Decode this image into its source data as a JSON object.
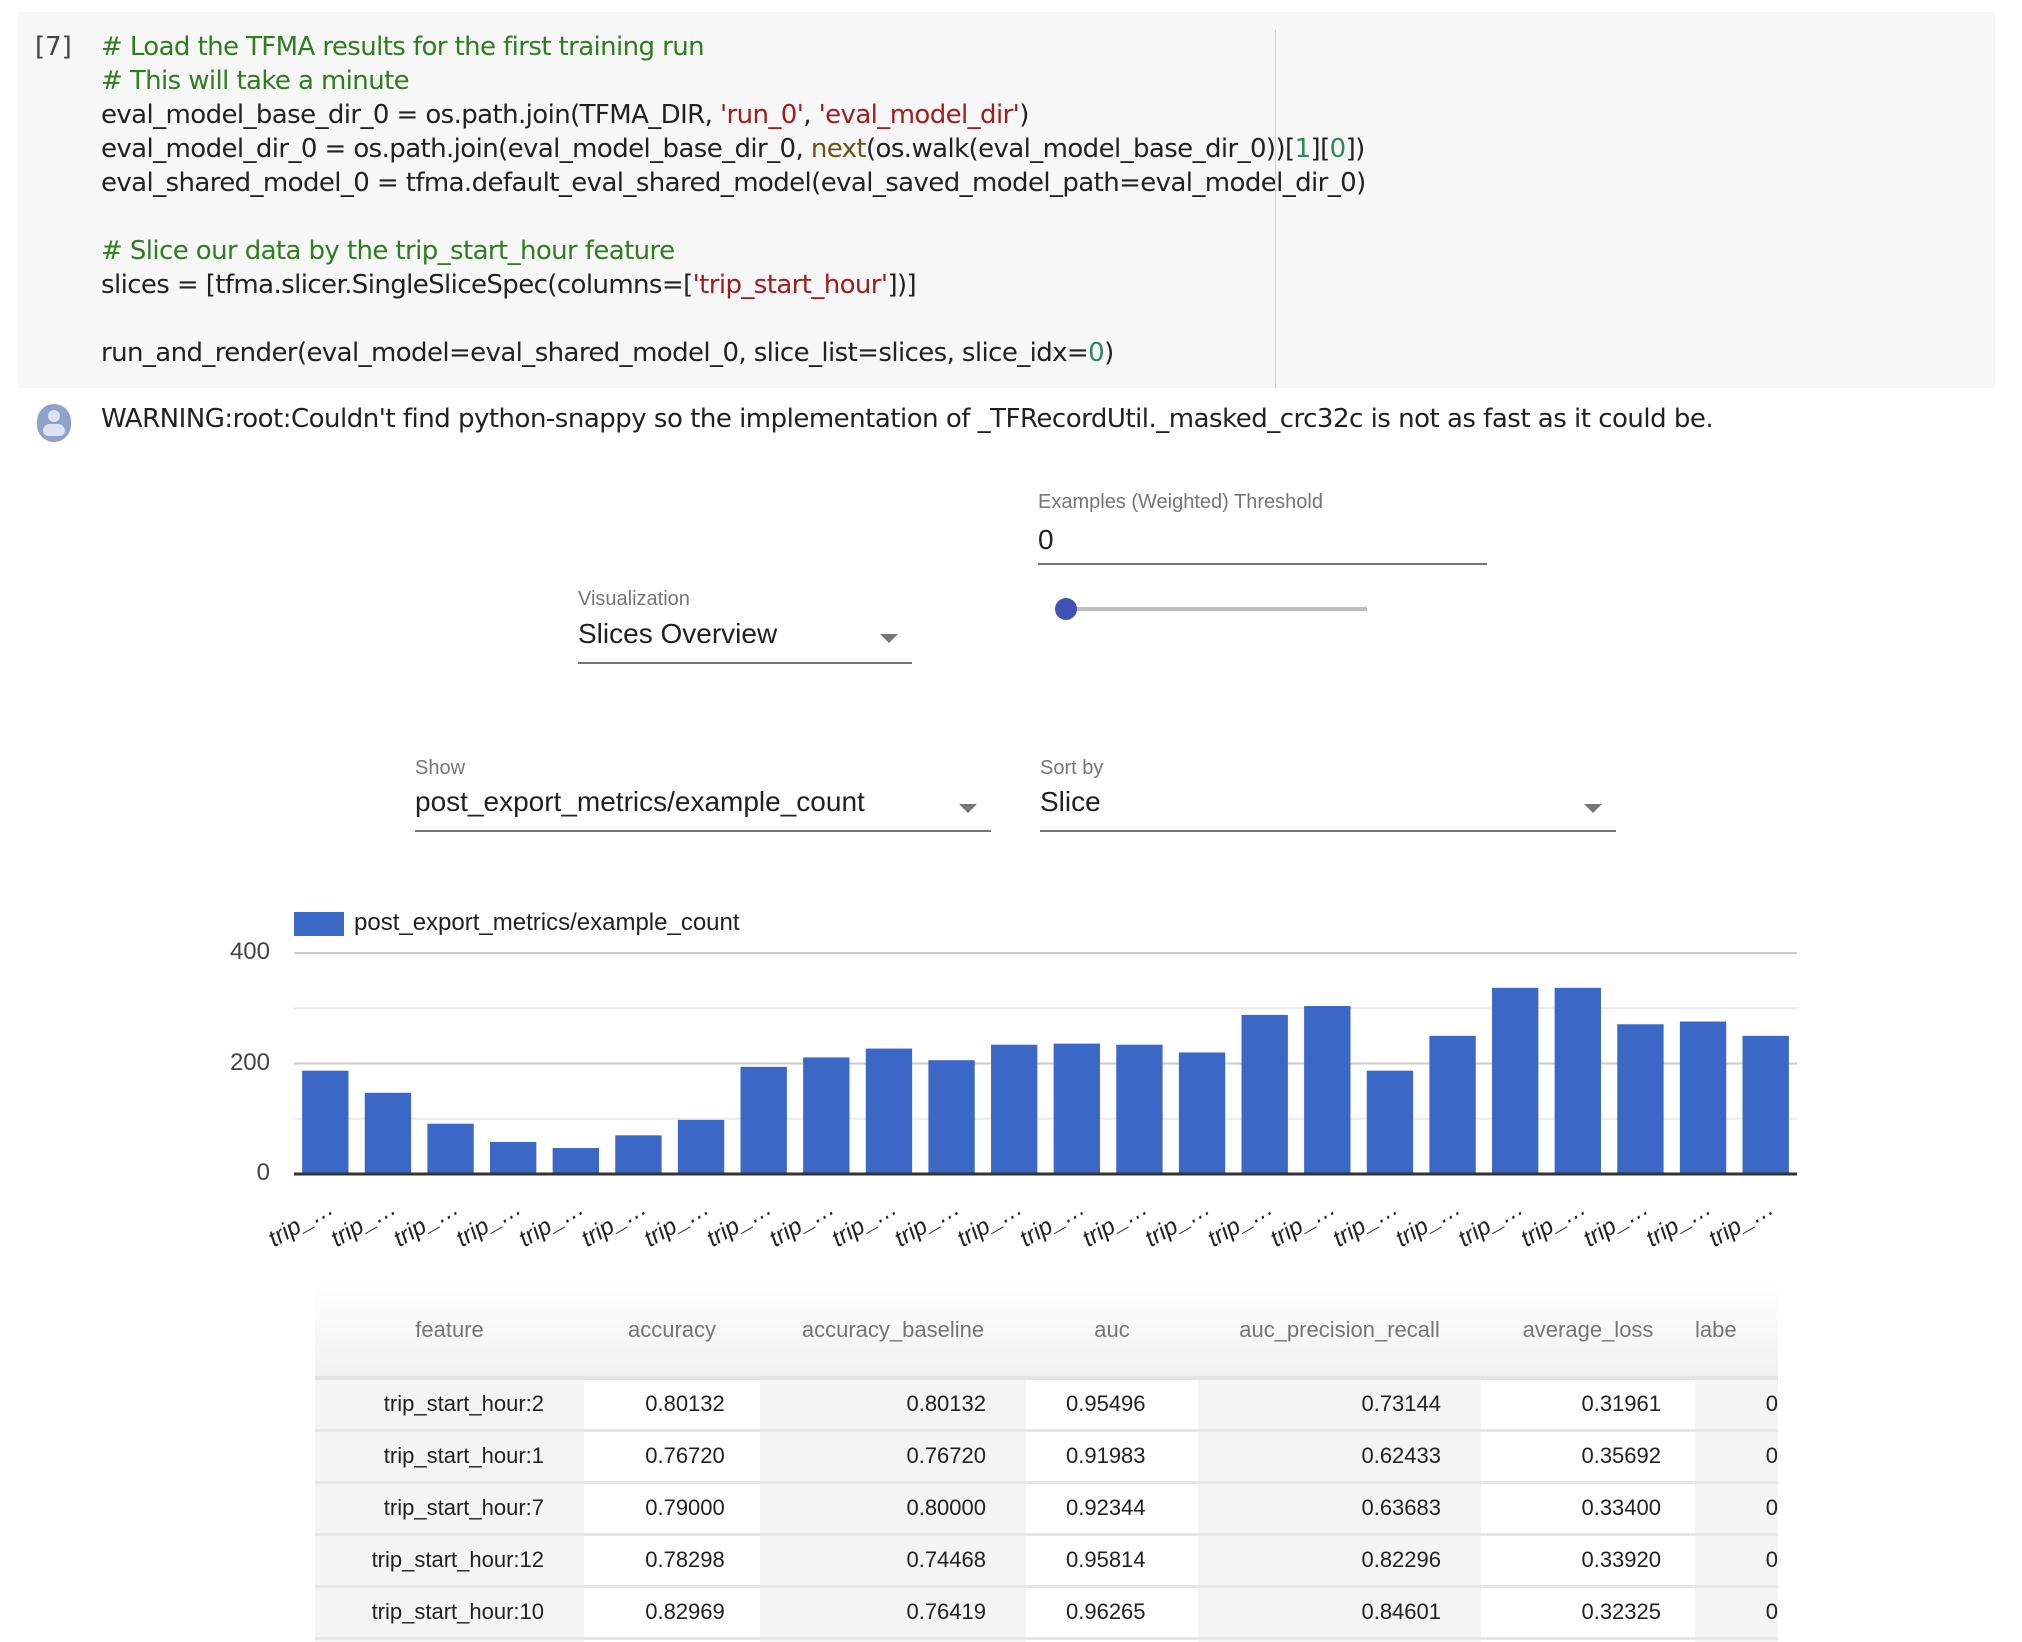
{
  "cell": {
    "prompt": "[7]",
    "lines": [
      [
        {
          "t": "# Load the TFMA results for the first training run",
          "c": "c"
        }
      ],
      [
        {
          "t": "# This will take a minute",
          "c": "c"
        }
      ],
      [
        {
          "t": "eval_model_base_dir_0 = os.path.join(TFMA_DIR, "
        },
        {
          "t": "'run_0'",
          "c": "s"
        },
        {
          "t": ", "
        },
        {
          "t": "'eval_model_dir'",
          "c": "s"
        },
        {
          "t": ")"
        }
      ],
      [
        {
          "t": "eval_model_dir_0 = os.path.join(eval_model_base_dir_0, "
        },
        {
          "t": "next",
          "c": "k"
        },
        {
          "t": "(os.walk(eval_model_base_dir_0))["
        },
        {
          "t": "1",
          "c": "n"
        },
        {
          "t": "]["
        },
        {
          "t": "0",
          "c": "n"
        },
        {
          "t": "])"
        }
      ],
      [
        {
          "t": "eval_shared_model_0 = tfma.default_eval_shared_model(eval_saved_model_path=eval_model_dir_0)"
        }
      ],
      [
        {
          "t": ""
        }
      ],
      [
        {
          "t": "# Slice our data by the trip_start_hour feature",
          "c": "c"
        }
      ],
      [
        {
          "t": "slices = [tfma.slicer.SingleSliceSpec(columns=["
        },
        {
          "t": "'trip_start_hour'",
          "c": "s"
        },
        {
          "t": "])]"
        }
      ],
      [
        {
          "t": ""
        }
      ],
      [
        {
          "t": "run_and_render(eval_model=eval_shared_model_0, slice_list=slices, slice_idx="
        },
        {
          "t": "0",
          "c": "n"
        },
        {
          "t": ")"
        }
      ]
    ]
  },
  "output": {
    "warning": "WARNING:root:Couldn't find python-snappy so the implementation of _TFRecordUtil._masked_crc32c is not as fast as it could be."
  },
  "controls": {
    "threshold": {
      "label": "Examples (Weighted) Threshold",
      "value": "0",
      "slider_value": 0
    },
    "visualization": {
      "label": "Visualization",
      "value": "Slices Overview"
    },
    "show": {
      "label": "Show",
      "value": "post_export_metrics/example_count"
    },
    "sort_by": {
      "label": "Sort by",
      "value": "Slice"
    }
  },
  "chart_data": {
    "type": "bar",
    "legend": "post_export_metrics/example_count",
    "legend_placement": "top-left",
    "color": "#3b67c6",
    "ylim": [
      0,
      400
    ],
    "yticks": [
      "0",
      "200",
      "400"
    ],
    "grid": true,
    "categories": [
      "trip_…",
      "trip_…",
      "trip_…",
      "trip_…",
      "trip_…",
      "trip_…",
      "trip_…",
      "trip_…",
      "trip_…",
      "trip_…",
      "trip_…",
      "trip_…",
      "trip_…",
      "trip_…",
      "trip_…",
      "trip_…",
      "trip_…",
      "trip_…",
      "trip_…",
      "trip_…",
      "trip_…",
      "trip_…",
      "trip_…",
      "trip_…"
    ],
    "values": [
      187,
      147,
      91,
      58,
      47,
      70,
      98,
      194,
      211,
      227,
      206,
      234,
      236,
      234,
      220,
      288,
      304,
      187,
      250,
      337,
      337,
      271,
      276,
      250
    ]
  },
  "table": {
    "headers": [
      "feature",
      "accuracy",
      "accuracy_baseline",
      "auc",
      "auc_precision_recall",
      "average_loss",
      "labe"
    ],
    "rows": [
      [
        "trip_start_hour:2",
        "0.80132",
        "0.80132",
        "0.95496",
        "0.73144",
        "0.31961",
        "0"
      ],
      [
        "trip_start_hour:1",
        "0.76720",
        "0.76720",
        "0.91983",
        "0.62433",
        "0.35692",
        "0"
      ],
      [
        "trip_start_hour:7",
        "0.79000",
        "0.80000",
        "0.92344",
        "0.63683",
        "0.33400",
        "0"
      ],
      [
        "trip_start_hour:12",
        "0.78298",
        "0.74468",
        "0.95814",
        "0.82296",
        "0.33920",
        "0"
      ],
      [
        "trip_start_hour:10",
        "0.82969",
        "0.76419",
        "0.96265",
        "0.84601",
        "0.32325",
        "0"
      ],
      [
        "",
        "",
        "",
        "",
        "",
        "",
        ""
      ]
    ]
  }
}
